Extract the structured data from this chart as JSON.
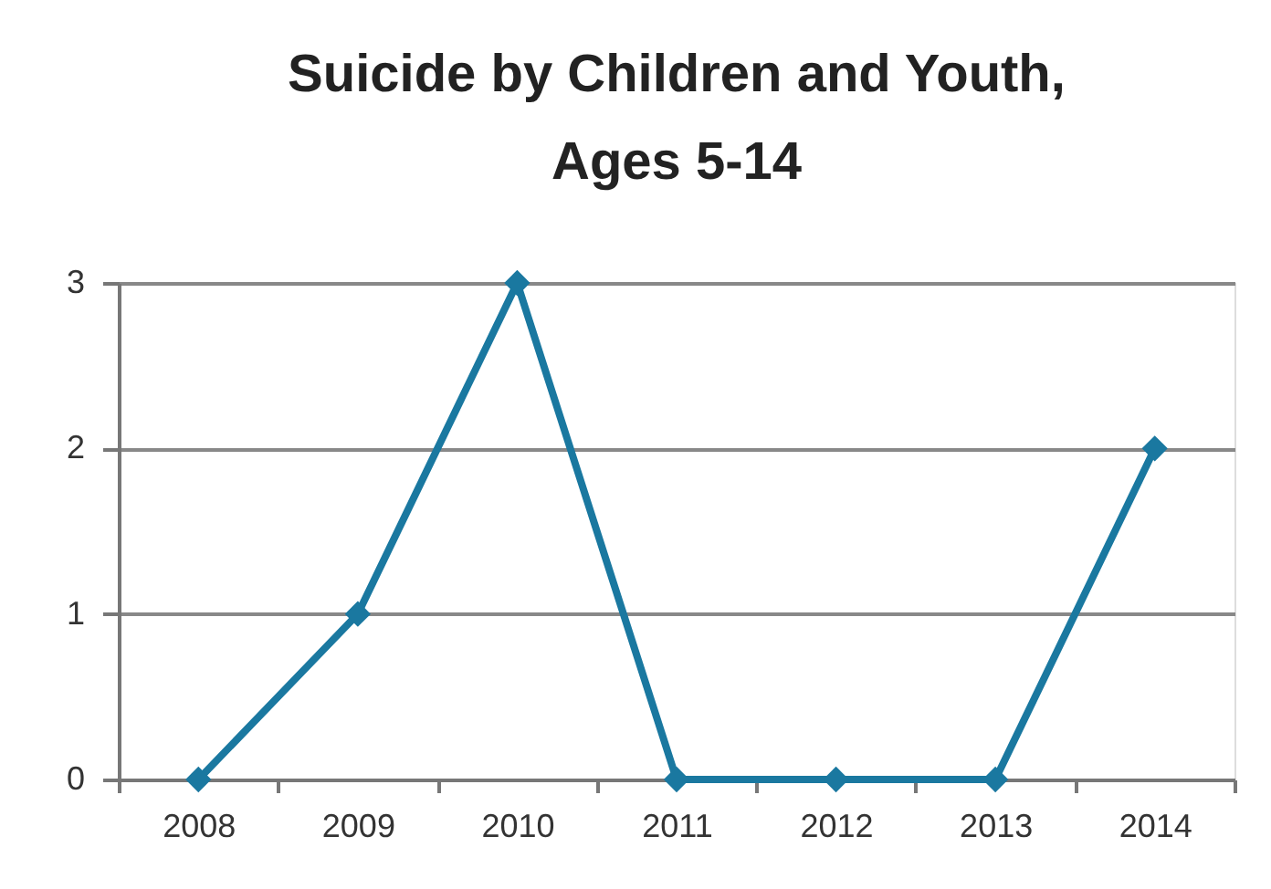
{
  "chart_data": {
    "type": "line",
    "title": "Suicide by Children and Youth,\nAges 5-14",
    "categories": [
      "2008",
      "2009",
      "2010",
      "2011",
      "2012",
      "2013",
      "2014"
    ],
    "series": [
      {
        "color": "#1a78a0",
        "values": [
          0,
          1,
          3,
          0,
          0,
          0,
          2
        ]
      }
    ],
    "ylim": [
      0,
      3
    ],
    "yticks": [
      0,
      1,
      2,
      3
    ],
    "grid": "y",
    "marker": "diamond",
    "line_style": "solid",
    "legend": false
  }
}
